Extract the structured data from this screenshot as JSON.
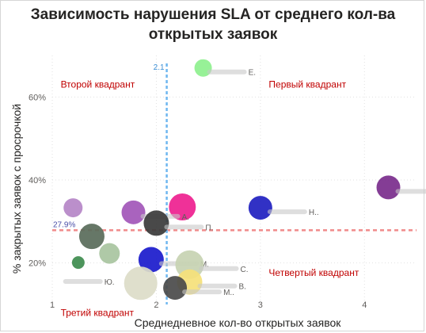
{
  "chart_data": {
    "type": "scatter",
    "title": "Зависимость нарушения SLA от среднего кол-ва открытых заявок",
    "xlabel": "Среднедневное кол-во открытых заявок",
    "ylabel": "% закрытых заявок с просрочкой",
    "xlim": [
      1,
      4.5
    ],
    "ylim": [
      10,
      70
    ],
    "x_ticks": [
      {
        "v": 1,
        "label": "1"
      },
      {
        "v": 2,
        "label": "2"
      },
      {
        "v": 3,
        "label": "3"
      },
      {
        "v": 4,
        "label": "4"
      }
    ],
    "y_ticks": [
      {
        "v": 20,
        "label": "20%"
      },
      {
        "v": 40,
        "label": "40%"
      },
      {
        "v": 60,
        "label": "60%"
      }
    ],
    "grid": true,
    "ref_lines": {
      "x": {
        "value": 2.1,
        "label": "2.1",
        "color": "#6fb7f0"
      },
      "y": {
        "value": 27.9,
        "label": "27.9%",
        "color": "#f08b8b"
      }
    },
    "quadrants": [
      {
        "label": "Второй квадрант",
        "x": 1.05,
        "y": 63
      },
      {
        "label": "Первый квадрант",
        "x": 3.05,
        "y": 63
      },
      {
        "label": "Третий квадрант",
        "x": 1.05,
        "y": 8
      },
      {
        "label": "Четвертый квадрант",
        "x": 3.05,
        "y": 17.6
      }
    ],
    "points": [
      {
        "x": 2.45,
        "y": 67,
        "r": 11,
        "color": "#8ef08e",
        "label": "Е."
      },
      {
        "x": 2.25,
        "y": 33.5,
        "r": 17,
        "color": "#ee1f8f",
        "label": ""
      },
      {
        "x": 1.2,
        "y": 33.3,
        "r": 12,
        "color": "#b586c7",
        "label": ""
      },
      {
        "x": 1.78,
        "y": 32.2,
        "r": 15,
        "color": "#a256b8",
        "label": "А."
      },
      {
        "x": 2.0,
        "y": 29.6,
        "r": 16,
        "color": "#3a3a3a",
        "label": "П."
      },
      {
        "x": 3.0,
        "y": 33.3,
        "r": 15,
        "color": "#2020c0",
        "label": "Н.."
      },
      {
        "x": 4.23,
        "y": 38.2,
        "r": 15,
        "color": "#7a2d8c",
        "label": "Д.."
      },
      {
        "x": 1.38,
        "y": 26.4,
        "r": 16,
        "color": "#596b5a",
        "label": ""
      },
      {
        "x": 1.55,
        "y": 22.3,
        "r": 13,
        "color": "#a8c4a0",
        "label": ""
      },
      {
        "x": 1.25,
        "y": 20.1,
        "r": 8,
        "color": "#3e8c4e",
        "label": ""
      },
      {
        "x": 1.95,
        "y": 20.8,
        "r": 16,
        "color": "#1a1acc",
        "label": "М."
      },
      {
        "x": 2.32,
        "y": 19.6,
        "r": 18,
        "color": "#c7d2b2",
        "label": "С."
      },
      {
        "x": 2.32,
        "y": 15.4,
        "r": 16,
        "color": "#f5e17a",
        "label": "В."
      },
      {
        "x": 1.85,
        "y": 15.1,
        "r": 21,
        "color": "#dcdcc8",
        "label": ""
      },
      {
        "x": 2.18,
        "y": 14.0,
        "r": 15,
        "color": "#4a4a4a",
        "label": "М.."
      },
      {
        "x": 1.15,
        "y": 16.5,
        "r": 0,
        "color": "#ffffff",
        "label": "Ю."
      }
    ]
  }
}
